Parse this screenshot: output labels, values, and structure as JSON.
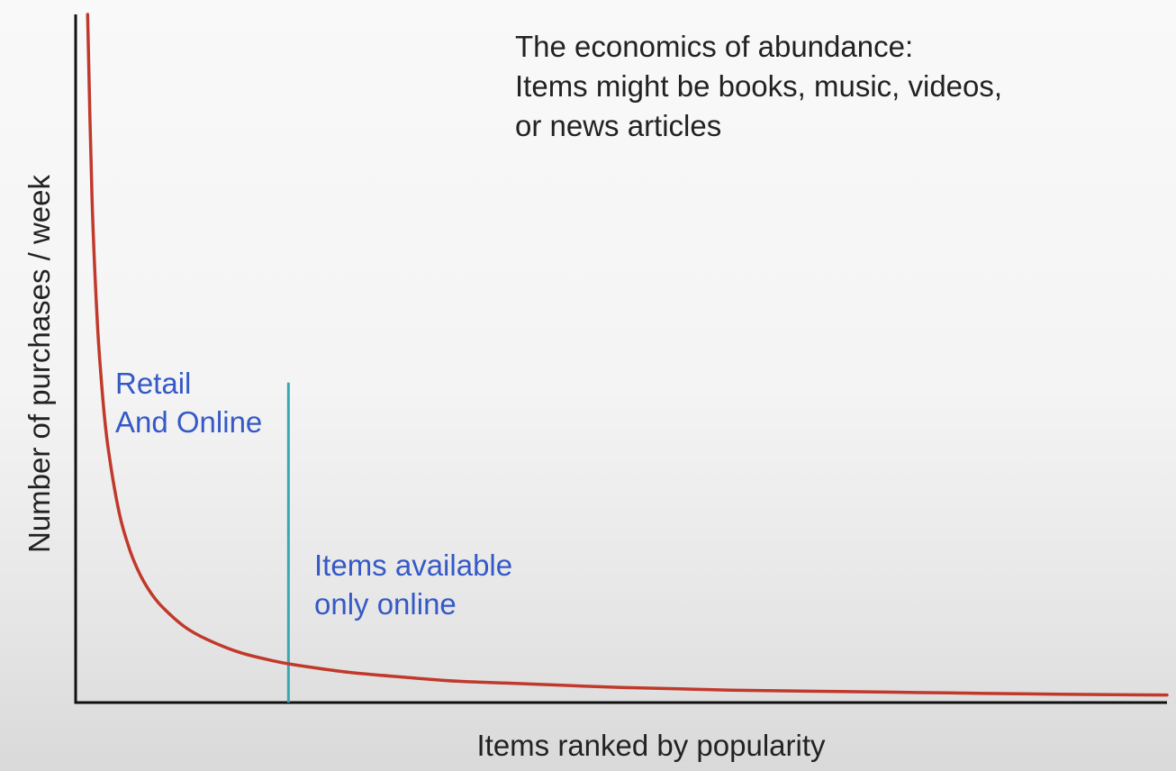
{
  "chart_data": {
    "type": "line",
    "title_lines": [
      "The economics of abundance:",
      "Items might be books, music, videos,",
      "or news articles"
    ],
    "xlabel": "Items ranked by popularity",
    "ylabel": "Number of purchases / week",
    "grid": false,
    "legend": "none",
    "x_ticks": [],
    "y_ticks": [],
    "xlim": [
      0,
      100
    ],
    "ylim": [
      0,
      100
    ],
    "series": [
      {
        "color": "#c0392b",
        "x": [
          1.1,
          1.5,
          2,
          2.5,
          3,
          4,
          5,
          6,
          7,
          8,
          10,
          12,
          15,
          18,
          20,
          25,
          30,
          35,
          40,
          50,
          60,
          70,
          80,
          90,
          100
        ],
        "y": [
          100,
          73.3,
          55,
          44,
          36.7,
          27.5,
          22,
          18.3,
          15.7,
          13.8,
          11,
          9.2,
          7.3,
          6.1,
          5.5,
          4.4,
          3.7,
          3.1,
          2.8,
          2.2,
          1.8,
          1.6,
          1.4,
          1.2,
          1.1
        ]
      }
    ],
    "divider": {
      "x": 19.5,
      "y_top": 46.5,
      "color": "#3aa7b5"
    },
    "annotations": [
      {
        "lines": [
          "Retail",
          "And Online"
        ],
        "color": "#3559c7"
      },
      {
        "lines": [
          "Items available",
          "only online"
        ],
        "color": "#3559c7"
      }
    ],
    "axis_color": "#111111",
    "text_color": "#222222"
  }
}
